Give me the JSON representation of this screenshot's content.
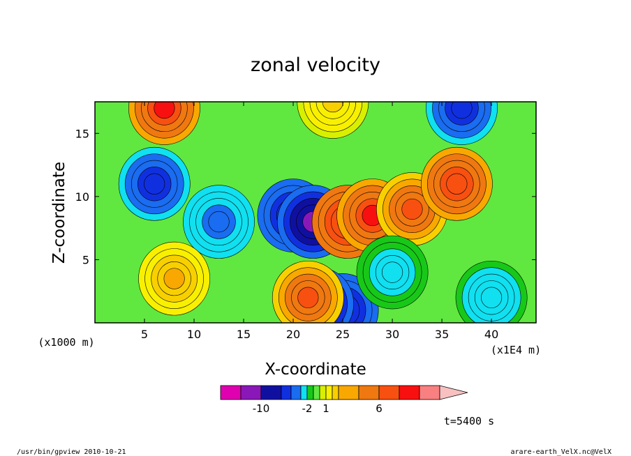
{
  "chart_data": {
    "type": "heatmap",
    "title": "zonal velocity",
    "xlabel": "X-coordinate",
    "ylabel": "Z-coordinate",
    "x_unit_label": "(x1E4 m)",
    "y_unit_label": "(x1000 m)",
    "x_ticks": [
      5,
      10,
      15,
      20,
      25,
      30,
      35,
      40
    ],
    "y_ticks": [
      5,
      10,
      15
    ],
    "xlim": [
      0,
      44.5
    ],
    "ylim": [
      0,
      17.5
    ],
    "colorbar": {
      "levels": [
        -14,
        -12,
        -10,
        -8,
        -6,
        -4,
        -2,
        -1,
        0,
        1,
        2,
        3,
        4,
        6,
        8,
        10,
        12
      ],
      "colors": [
        "#e000b0",
        "#8a18b8",
        "#1010a0",
        "#1030e0",
        "#1a6cf0",
        "#10e0f0",
        "#18c818",
        "#60e840",
        "#d8f000",
        "#f8f000",
        "#f8d000",
        "#f8a800",
        "#f07810",
        "#f85010",
        "#f81010",
        "#f88080",
        "#f8c0c0"
      ],
      "tick_labels": [
        {
          "value": -10,
          "text": "-10"
        },
        {
          "value": -2,
          "text": "-2"
        },
        {
          "value": 1,
          "text": "1"
        },
        {
          "value": 6,
          "text": "6"
        }
      ]
    },
    "features": [
      {
        "x": 7,
        "z": 17,
        "u": 8
      },
      {
        "x": 6,
        "z": 11,
        "u": -7
      },
      {
        "x": 12.5,
        "z": 8,
        "u": -5
      },
      {
        "x": 20,
        "z": 8.5,
        "u": -9
      },
      {
        "x": 22,
        "z": 8,
        "u": -11
      },
      {
        "x": 25.5,
        "z": 8,
        "u": 9
      },
      {
        "x": 28,
        "z": 8.5,
        "u": 8
      },
      {
        "x": 32,
        "z": 9,
        "u": 6
      },
      {
        "x": 36.5,
        "z": 11,
        "u": 7
      },
      {
        "x": 37,
        "z": 17,
        "u": -8
      },
      {
        "x": 24,
        "z": 17.5,
        "u": 2
      },
      {
        "x": 25,
        "z": 1,
        "u": -9
      },
      {
        "x": 22.5,
        "z": 1.5,
        "u": -12
      },
      {
        "x": 21.5,
        "z": 2,
        "u": 6
      },
      {
        "x": 8,
        "z": 3.5,
        "u": 3
      },
      {
        "x": 30,
        "z": 4,
        "u": -3
      },
      {
        "x": 40,
        "z": 2,
        "u": -4
      }
    ]
  },
  "time_label": "t=5400 s",
  "footer_left": "/usr/bin/gpview  2010-10-21",
  "footer_right": "arare-earth_VelX.nc@VelX"
}
